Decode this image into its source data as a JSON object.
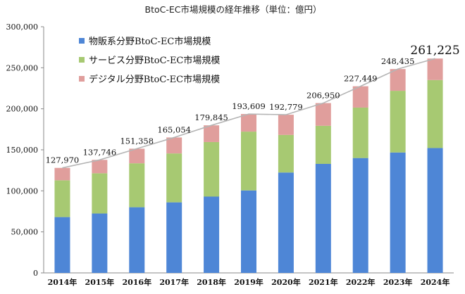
{
  "chart_data": {
    "type": "bar",
    "stacked": true,
    "title": "BtoC-EC市場規模の経年推移（単位：億円）",
    "categories": [
      "2014年",
      "2015年",
      "2016年",
      "2017年",
      "2018年",
      "2019年",
      "2020年",
      "2021年",
      "2022年",
      "2023年",
      "2024年"
    ],
    "series": [
      {
        "name": "物販系分野BtoC-EC市場規模",
        "color": "#4e86d6",
        "values": [
          68043,
          72398,
          80043,
          86008,
          92992,
          100515,
          122333,
          132865,
          139997,
          146760,
          152194
        ]
      },
      {
        "name": "サービス分野BtoC-EC市場規模",
        "color": "#a7c972",
        "values": [
          44816,
          49014,
          53532,
          59568,
          66471,
          71672,
          45832,
          46424,
          61477,
          75169,
          82838
        ]
      },
      {
        "name": "デジタル分野BtoC-EC市場規模",
        "color": "#e09e9c",
        "values": [
          15111,
          16334,
          17783,
          19478,
          20382,
          21422,
          24614,
          27661,
          25975,
          26506,
          26193
        ]
      }
    ],
    "totals": [
      127970,
      137746,
      151358,
      165054,
      179845,
      193609,
      192779,
      206950,
      227449,
      248435,
      261225
    ],
    "total_labels": [
      "127,970",
      "137,746",
      "151,358",
      "165,054",
      "179,845",
      "193,609",
      "192,779",
      "206,950",
      "227,449",
      "248,435",
      "261,225"
    ],
    "ylim": [
      0,
      300000
    ],
    "yticks": [
      0,
      50000,
      100000,
      150000,
      200000,
      250000,
      300000
    ],
    "ytick_labels": [
      "0",
      "50,000",
      "100,000",
      "150,000",
      "200,000",
      "250,000",
      "300,000"
    ],
    "xlabel": "",
    "ylabel": "",
    "grid": false,
    "legend_position": "top-left",
    "trend_line_color": "#b5b5b5",
    "axis_color": "#888888"
  }
}
